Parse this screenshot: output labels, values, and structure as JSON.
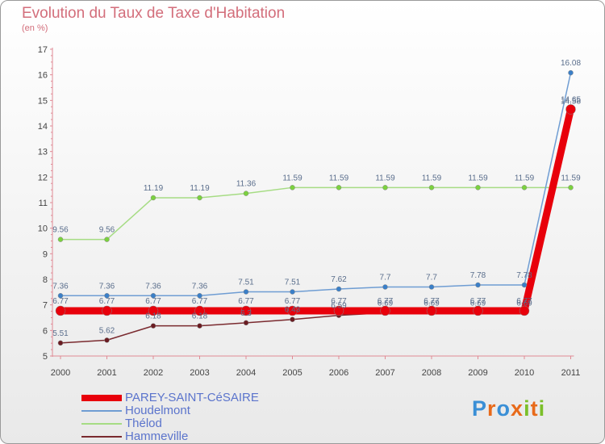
{
  "title": "Evolution du Taux de Taxe d'Habitation",
  "unit": "(en %)",
  "logo": "Proxiti",
  "chart_data": {
    "type": "line",
    "title": "Evolution du Taux de Taxe d'Habitation",
    "ylabel": "(en %)",
    "xlabel": "",
    "ylim": [
      5,
      17
    ],
    "grid": false,
    "legend_position": "bottom-left",
    "categories": [
      "2000",
      "2001",
      "2002",
      "2003",
      "2004",
      "2005",
      "2006",
      "2007",
      "2008",
      "2009",
      "2010",
      "2011"
    ],
    "yticks": [
      5,
      6,
      7,
      8,
      9,
      10,
      11,
      12,
      13,
      14,
      15,
      16,
      17
    ],
    "series": [
      {
        "name": "PAREY-SAINT-CéSAIRE",
        "color": "#e8000b",
        "values": [
          6.77,
          6.77,
          6.77,
          6.77,
          6.77,
          6.77,
          6.77,
          6.77,
          6.77,
          6.77,
          6.77,
          14.65
        ],
        "labels": [
          "6.77",
          "6.77",
          "6.77",
          "6.77",
          "6.77",
          "6.77",
          "6.77",
          "6.77",
          "6.77",
          "6.77",
          "6.77",
          "14.65"
        ]
      },
      {
        "name": "Houdelmont",
        "color": "#6f9dd3",
        "values": [
          7.36,
          7.36,
          7.36,
          7.36,
          7.51,
          7.51,
          7.62,
          7.7,
          7.7,
          7.78,
          7.78,
          16.08
        ],
        "labels": [
          "7.36",
          "7.36",
          "7.36",
          "7.36",
          "7.51",
          "7.51",
          "7.62",
          "7.7",
          "7.7",
          "7.78",
          "7.78",
          "16.08"
        ]
      },
      {
        "name": "Thélod",
        "color": "#a6dc84",
        "values": [
          9.56,
          9.56,
          11.19,
          11.19,
          11.36,
          11.59,
          11.59,
          11.59,
          11.59,
          11.59,
          11.59,
          11.59
        ],
        "labels": [
          "9.56",
          "9.56",
          "11.19",
          "11.19",
          "11.36",
          "11.59",
          "11.59",
          "11.59",
          "11.59",
          "11.59",
          "11.59",
          "11.59"
        ]
      },
      {
        "name": "Hammeville",
        "color": "#7a2a2f",
        "values": [
          5.51,
          5.62,
          6.18,
          6.18,
          6.3,
          6.43,
          6.59,
          6.69,
          6.69,
          6.69,
          6.69,
          14.58
        ],
        "labels": [
          "5.51",
          "5.62",
          "6.18",
          "6.18",
          "6.3",
          "6.43",
          "6.59",
          "6.69",
          "6.69",
          "6.69",
          "6.69",
          "14.58"
        ]
      }
    ]
  }
}
